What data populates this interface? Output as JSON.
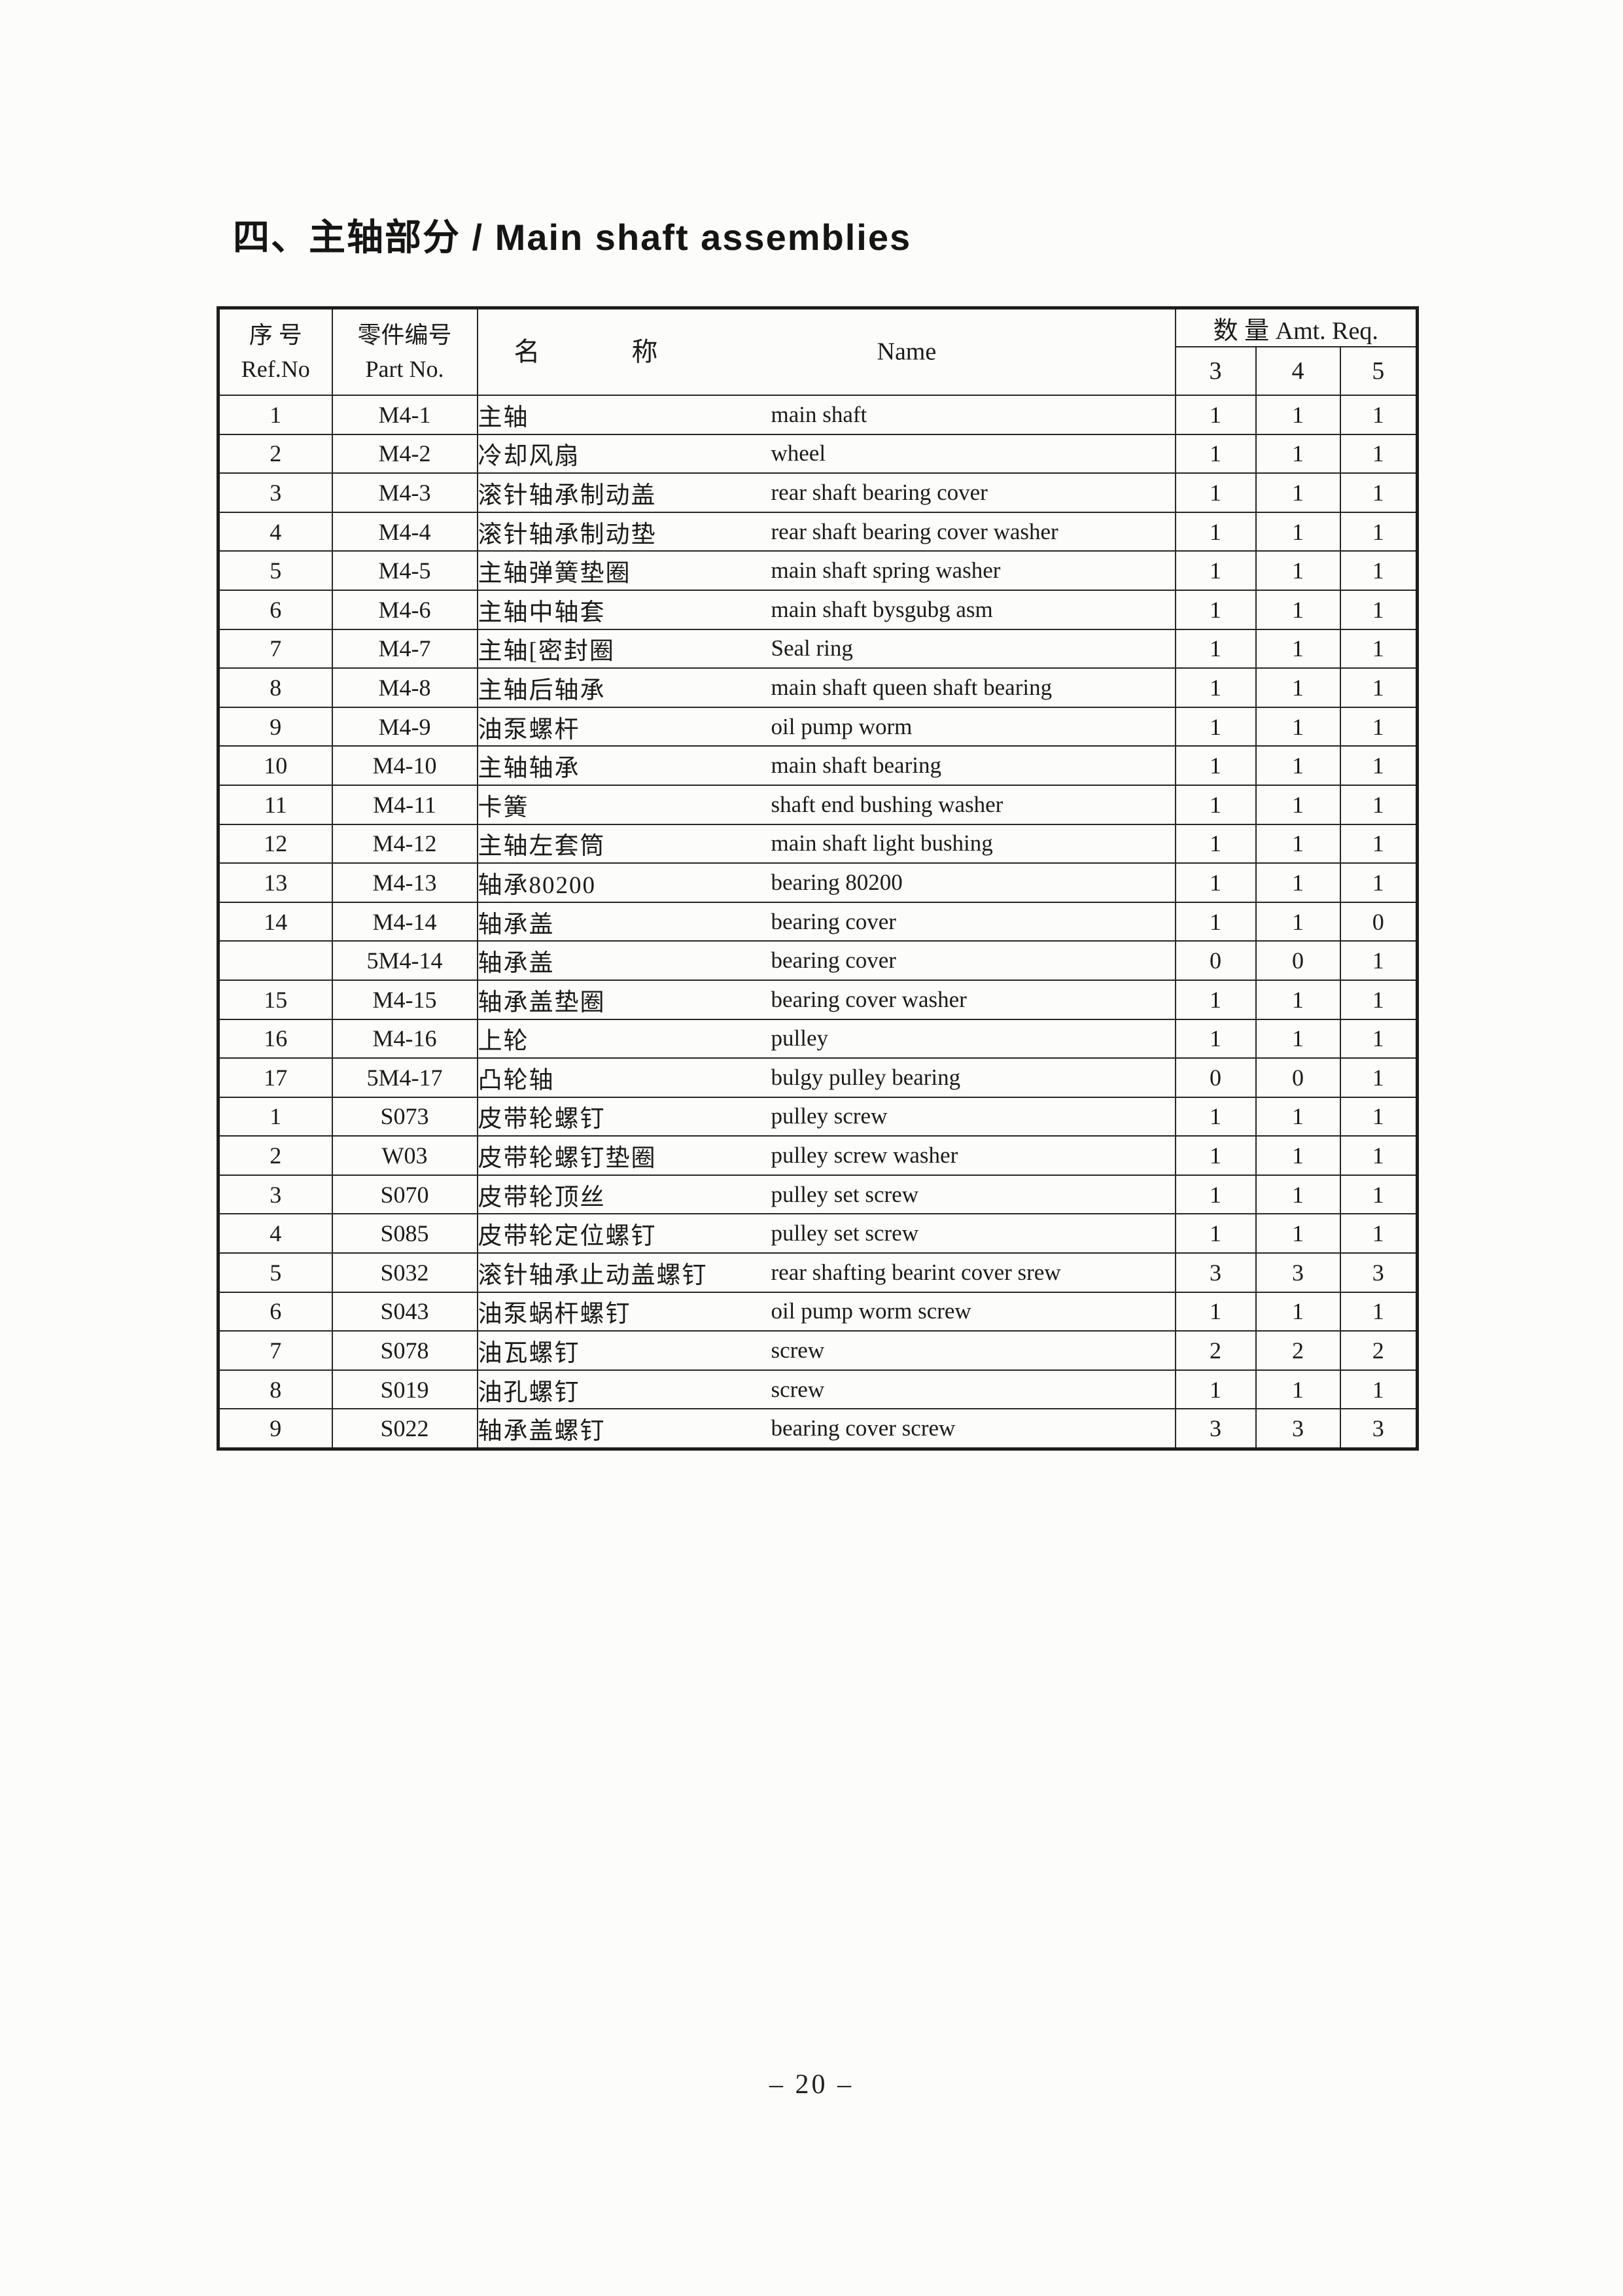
{
  "page": {
    "title": "四、主轴部分 / Main shaft assemblies",
    "page_number": "– 20 –"
  },
  "table": {
    "header": {
      "ref": {
        "zh": "序 号",
        "en": "Ref.No"
      },
      "part": {
        "zh": "零件编号",
        "en": "Part No."
      },
      "name": {
        "zh": "名 称",
        "en": "Name"
      },
      "qty": {
        "label": "数 量 Amt. Req.",
        "columns": [
          "3",
          "4",
          "5"
        ]
      }
    },
    "rows": [
      {
        "ref": "1",
        "part": "M4-1",
        "zh": "主轴",
        "en": "main shaft",
        "qty": [
          "1",
          "1",
          "1"
        ]
      },
      {
        "ref": "2",
        "part": "M4-2",
        "zh": "冷却风扇",
        "en": "wheel",
        "qty": [
          "1",
          "1",
          "1"
        ]
      },
      {
        "ref": "3",
        "part": "M4-3",
        "zh": "滚针轴承制动盖",
        "en": "rear shaft bearing cover",
        "qty": [
          "1",
          "1",
          "1"
        ]
      },
      {
        "ref": "4",
        "part": "M4-4",
        "zh": "滚针轴承制动垫",
        "en": "rear shaft bearing cover washer",
        "qty": [
          "1",
          "1",
          "1"
        ]
      },
      {
        "ref": "5",
        "part": "M4-5",
        "zh": "主轴弹簧垫圈",
        "en": "main shaft spring washer",
        "qty": [
          "1",
          "1",
          "1"
        ]
      },
      {
        "ref": "6",
        "part": "M4-6",
        "zh": "主轴中轴套",
        "en": "main shaft bysgubg asm",
        "qty": [
          "1",
          "1",
          "1"
        ]
      },
      {
        "ref": "7",
        "part": "M4-7",
        "zh": "主轴[密封圈",
        "en": "Seal ring",
        "qty": [
          "1",
          "1",
          "1"
        ]
      },
      {
        "ref": "8",
        "part": "M4-8",
        "zh": "主轴后轴承",
        "en": "main shaft queen shaft bearing",
        "qty": [
          "1",
          "1",
          "1"
        ]
      },
      {
        "ref": "9",
        "part": "M4-9",
        "zh": "油泵螺杆",
        "en": "oil pump worm",
        "qty": [
          "1",
          "1",
          "1"
        ]
      },
      {
        "ref": "10",
        "part": "M4-10",
        "zh": "主轴轴承",
        "en": "main shaft bearing",
        "qty": [
          "1",
          "1",
          "1"
        ]
      },
      {
        "ref": "11",
        "part": "M4-11",
        "zh": "卡簧",
        "en": "shaft end bushing washer",
        "qty": [
          "1",
          "1",
          "1"
        ]
      },
      {
        "ref": "12",
        "part": "M4-12",
        "zh": "主轴左套筒",
        "en": "main shaft light bushing",
        "qty": [
          "1",
          "1",
          "1"
        ]
      },
      {
        "ref": "13",
        "part": "M4-13",
        "zh": "轴承80200",
        "en": "bearing 80200",
        "qty": [
          "1",
          "1",
          "1"
        ]
      },
      {
        "ref": "14",
        "part": "M4-14",
        "zh": "轴承盖",
        "en": "bearing cover",
        "qty": [
          "1",
          "1",
          "0"
        ]
      },
      {
        "ref": "",
        "part": "5M4-14",
        "zh": "轴承盖",
        "en": "bearing cover",
        "qty": [
          "0",
          "0",
          "1"
        ]
      },
      {
        "ref": "15",
        "part": "M4-15",
        "zh": "轴承盖垫圈",
        "en": "bearing cover washer",
        "qty": [
          "1",
          "1",
          "1"
        ]
      },
      {
        "ref": "16",
        "part": "M4-16",
        "zh": "上轮",
        "en": "pulley",
        "qty": [
          "1",
          "1",
          "1"
        ]
      },
      {
        "ref": "17",
        "part": "5M4-17",
        "zh": "凸轮轴",
        "en": "bulgy pulley bearing",
        "qty": [
          "0",
          "0",
          "1"
        ]
      },
      {
        "ref": "1",
        "part": "S073",
        "zh": "皮带轮螺钉",
        "en": "pulley screw",
        "qty": [
          "1",
          "1",
          "1"
        ]
      },
      {
        "ref": "2",
        "part": "W03",
        "zh": "皮带轮螺钉垫圈",
        "en": "pulley screw washer",
        "qty": [
          "1",
          "1",
          "1"
        ]
      },
      {
        "ref": "3",
        "part": "S070",
        "zh": "皮带轮顶丝",
        "en": "pulley set screw",
        "qty": [
          "1",
          "1",
          "1"
        ]
      },
      {
        "ref": "4",
        "part": "S085",
        "zh": "皮带轮定位螺钉",
        "en": "pulley set screw",
        "qty": [
          "1",
          "1",
          "1"
        ]
      },
      {
        "ref": "5",
        "part": "S032",
        "zh": "滚针轴承止动盖螺钉",
        "en": "rear shafting bearint cover srew",
        "qty": [
          "3",
          "3",
          "3"
        ]
      },
      {
        "ref": "6",
        "part": "S043",
        "zh": "油泵蜗杆螺钉",
        "en": "oil pump worm screw",
        "qty": [
          "1",
          "1",
          "1"
        ]
      },
      {
        "ref": "7",
        "part": "S078",
        "zh": "油瓦螺钉",
        "en": "screw",
        "qty": [
          "2",
          "2",
          "2"
        ]
      },
      {
        "ref": "8",
        "part": "S019",
        "zh": "油孔螺钉",
        "en": "screw",
        "qty": [
          "1",
          "1",
          "1"
        ]
      },
      {
        "ref": "9",
        "part": "S022",
        "zh": "轴承盖螺钉",
        "en": "bearing cover screw",
        "qty": [
          "3",
          "3",
          "3"
        ]
      }
    ]
  }
}
